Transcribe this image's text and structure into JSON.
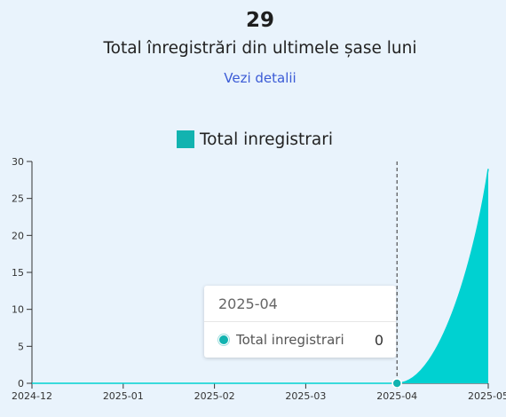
{
  "summary": {
    "value": "29",
    "label": "Total înregistrări din ultimele șase luni",
    "details_link": "Vezi detalii"
  },
  "colors": {
    "background": "#e9f3fc",
    "series": "#12b3b0",
    "area_fill": "#00d1d1",
    "link": "#3b5bd6"
  },
  "chart_data": {
    "type": "area",
    "title": "",
    "xlabel": "",
    "ylabel": "",
    "categories": [
      "2024-12",
      "2025-01",
      "2025-02",
      "2025-03",
      "2025-04",
      "2025-05"
    ],
    "series": [
      {
        "name": "Total inregistrari",
        "values": [
          0,
          0,
          0,
          0,
          0,
          29
        ]
      }
    ],
    "ylim": [
      0,
      30
    ],
    "yticks": [
      0,
      5,
      10,
      15,
      20,
      25,
      30
    ],
    "grid": false,
    "legend_position": "top-center",
    "hover_category": "2025-04"
  },
  "tooltip": {
    "title": "2025-04",
    "series_name": "Total inregistrari",
    "value": "0"
  }
}
